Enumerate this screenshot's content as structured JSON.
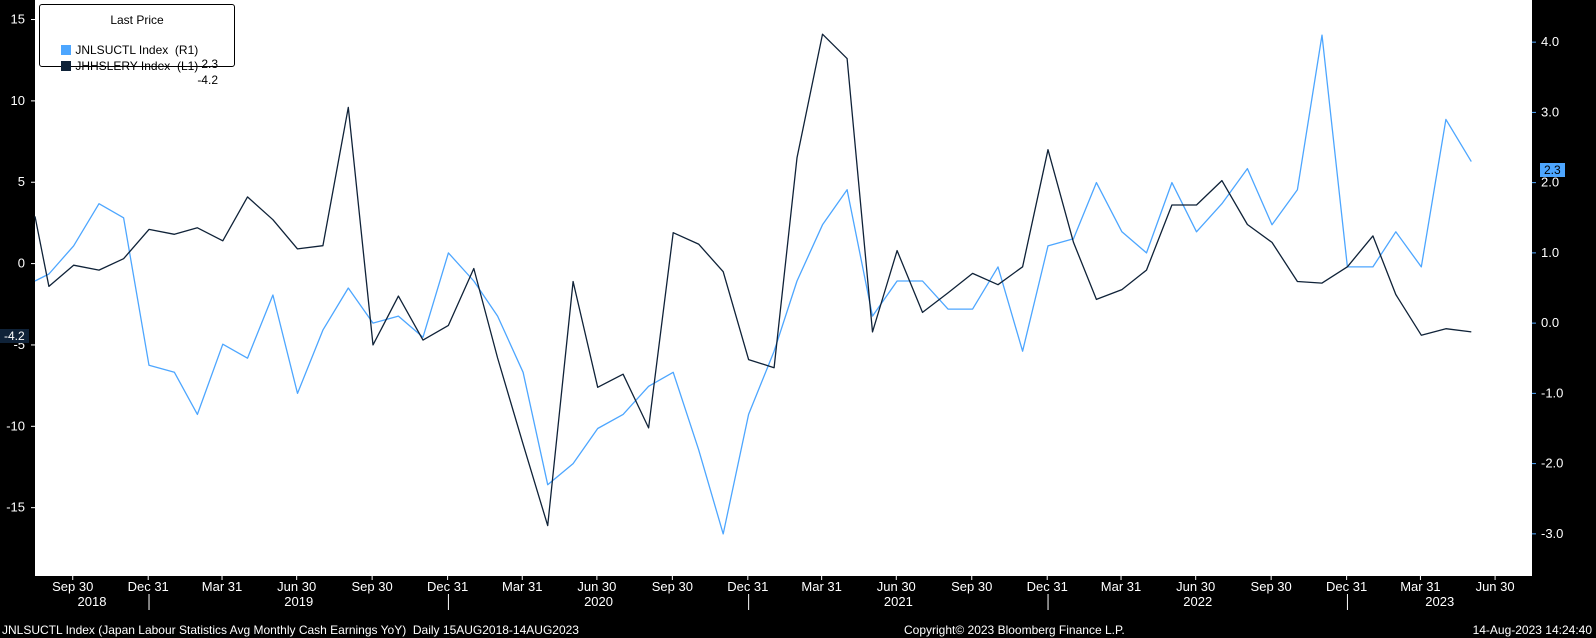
{
  "legend": {
    "title": "Last Price",
    "items": [
      {
        "label": "JNLSUCTL Index  (R1)",
        "value": "2.3",
        "color": "#4da6ff"
      },
      {
        "label": "JHHSLERY Index  (L1)",
        "value": "-4.2",
        "color": "#0f2238"
      }
    ]
  },
  "footer": {
    "left": "JNLSUCTL Index (Japan Labour Statistics Avg Monthly Cash Earnings YoY)  Daily 15AUG2018-14AUG2023",
    "center": "Copyright© 2023 Bloomberg Finance L.P.",
    "right": "14-Aug-2023 14:24:40"
  },
  "price_tags": {
    "right": "2.3",
    "left": "-4.2"
  },
  "colors": {
    "background": "#ffffff",
    "axis_bg": "#000000",
    "axis_text": "#ffffff",
    "series_light": "#4da6ff",
    "series_dark": "#0f2238"
  },
  "chart_data": {
    "type": "line",
    "left_axis": {
      "ticks": [
        "15",
        "10",
        "5",
        "0",
        "-5",
        "-10",
        "-15"
      ],
      "range": [
        -19.2,
        16.2
      ]
    },
    "right_axis": {
      "ticks": [
        "4.0",
        "3.0",
        "2.0",
        "1.0",
        "0.0",
        "-1.0",
        "-2.0",
        "-3.0"
      ],
      "range": [
        -3.6,
        4.6
      ]
    },
    "x_ticks": [
      "Sep 30",
      "Dec 31",
      "Mar 31",
      "Jun 30",
      "Sep 30",
      "Dec 31",
      "Mar 31",
      "Jun 30",
      "Sep 30",
      "Dec 31",
      "Mar 31",
      "Jun 30",
      "Sep 30",
      "Dec 31",
      "Mar 31",
      "Jun 30",
      "Sep 30",
      "Dec 31",
      "Mar 31",
      "Jun 30"
    ],
    "years": [
      "2018",
      "2019",
      "2020",
      "2021",
      "2022",
      "2023"
    ],
    "x_range": [
      "2018-08-15",
      "2023-08-14"
    ],
    "series": [
      {
        "name": "JNLSUCTL Index",
        "axis": "right",
        "x": [
          "2018-08-01",
          "2018-09-01",
          "2018-10-01",
          "2018-11-01",
          "2018-12-01",
          "2019-01-01",
          "2019-02-01",
          "2019-03-01",
          "2019-04-01",
          "2019-05-01",
          "2019-06-01",
          "2019-07-01",
          "2019-08-01",
          "2019-09-01",
          "2019-10-01",
          "2019-11-01",
          "2019-12-01",
          "2020-01-01",
          "2020-02-01",
          "2020-03-01",
          "2020-04-01",
          "2020-05-01",
          "2020-06-01",
          "2020-07-01",
          "2020-08-01",
          "2020-09-01",
          "2020-10-01",
          "2020-11-01",
          "2020-12-01",
          "2021-01-01",
          "2021-02-01",
          "2021-03-01",
          "2021-04-01",
          "2021-05-01",
          "2021-06-01",
          "2021-07-01",
          "2021-08-01",
          "2021-09-01",
          "2021-10-01",
          "2021-11-01",
          "2021-12-01",
          "2022-01-01",
          "2022-02-01",
          "2022-03-01",
          "2022-04-01",
          "2022-05-01",
          "2022-06-01",
          "2022-07-01",
          "2022-08-01",
          "2022-09-01",
          "2022-10-01",
          "2022-11-01",
          "2022-12-01",
          "2023-01-01",
          "2023-02-01",
          "2023-03-01",
          "2023-04-01",
          "2023-05-01",
          "2023-06-01"
        ],
        "values": [
          0.6,
          0.7,
          1.1,
          1.7,
          1.5,
          -0.6,
          -0.7,
          -1.3,
          -0.3,
          -0.5,
          0.4,
          -1.0,
          -0.1,
          0.5,
          0.0,
          0.1,
          -0.2,
          1.0,
          0.6,
          0.1,
          -0.7,
          -2.3,
          -2.0,
          -1.5,
          -1.3,
          -0.9,
          -0.7,
          -1.8,
          -3.0,
          -1.3,
          -0.4,
          0.6,
          1.4,
          1.9,
          0.1,
          0.6,
          0.6,
          0.2,
          0.2,
          0.8,
          -0.4,
          1.1,
          1.2,
          2.0,
          1.3,
          1.0,
          2.0,
          1.3,
          1.7,
          2.2,
          1.4,
          1.9,
          4.1,
          0.8,
          0.8,
          1.3,
          0.8,
          2.9,
          2.3
        ]
      },
      {
        "name": "JHHSLERY Index",
        "axis": "left",
        "x": [
          "2018-08-01",
          "2018-09-01",
          "2018-10-01",
          "2018-11-01",
          "2018-12-01",
          "2019-01-01",
          "2019-02-01",
          "2019-03-01",
          "2019-04-01",
          "2019-05-01",
          "2019-06-01",
          "2019-07-01",
          "2019-08-01",
          "2019-09-01",
          "2019-10-01",
          "2019-11-01",
          "2019-12-01",
          "2020-01-01",
          "2020-02-01",
          "2020-03-01",
          "2020-04-01",
          "2020-05-01",
          "2020-06-01",
          "2020-07-01",
          "2020-08-01",
          "2020-09-01",
          "2020-10-01",
          "2020-11-01",
          "2020-12-01",
          "2021-01-01",
          "2021-02-01",
          "2021-03-01",
          "2021-04-01",
          "2021-05-01",
          "2021-06-01",
          "2021-07-01",
          "2021-08-01",
          "2021-09-01",
          "2021-10-01",
          "2021-11-01",
          "2021-12-01",
          "2022-01-01",
          "2022-02-01",
          "2022-03-01",
          "2022-04-01",
          "2022-05-01",
          "2022-06-01",
          "2022-07-01",
          "2022-08-01",
          "2022-09-01",
          "2022-10-01",
          "2022-11-01",
          "2022-12-01",
          "2023-01-01",
          "2023-02-01",
          "2023-03-01",
          "2023-04-01",
          "2023-05-01",
          "2023-06-01"
        ],
        "values": [
          2.9,
          -1.4,
          -0.1,
          -0.4,
          0.3,
          2.1,
          1.8,
          2.2,
          1.4,
          4.1,
          2.7,
          0.9,
          1.1,
          9.6,
          -5.0,
          -2.0,
          -4.7,
          -3.8,
          -0.3,
          -5.8,
          -11.1,
          -16.1,
          -1.1,
          -7.6,
          -6.8,
          -10.1,
          1.9,
          1.2,
          -0.5,
          -5.9,
          -6.4,
          6.5,
          14.1,
          12.6,
          -4.2,
          0.8,
          -3.0,
          -1.8,
          -0.6,
          -1.3,
          -0.2,
          7.0,
          1.3,
          -2.2,
          -1.6,
          -0.4,
          3.6,
          3.6,
          5.1,
          2.4,
          1.3,
          -1.1,
          -1.2,
          -0.2,
          1.7,
          -1.9,
          -4.4,
          -4.0,
          -4.2
        ]
      }
    ]
  }
}
